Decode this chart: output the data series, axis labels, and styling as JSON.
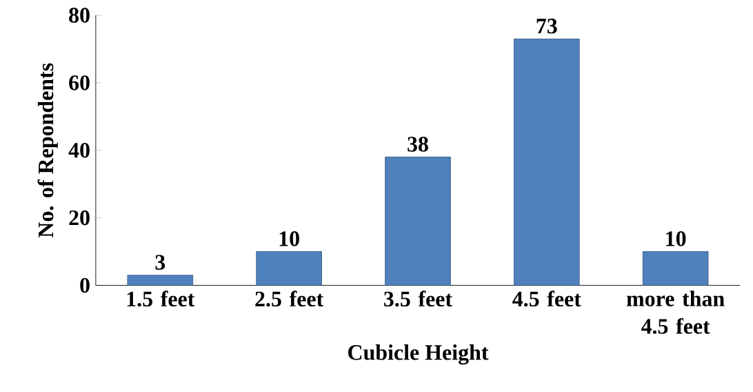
{
  "chart_data": {
    "type": "bar",
    "xlabel": "Cubicle Height",
    "ylabel": "No. of Repondents",
    "categories": [
      "1.5 feet",
      "2.5 feet",
      "3.5 feet",
      "4.5 feet",
      "more than 4.5 feet"
    ],
    "values": [
      3,
      10,
      38,
      73,
      10
    ],
    "color": "#4f81bd",
    "ylim": [
      0,
      80
    ],
    "yticks": [
      0,
      20,
      40,
      60,
      80
    ],
    "data_labels": true
  }
}
